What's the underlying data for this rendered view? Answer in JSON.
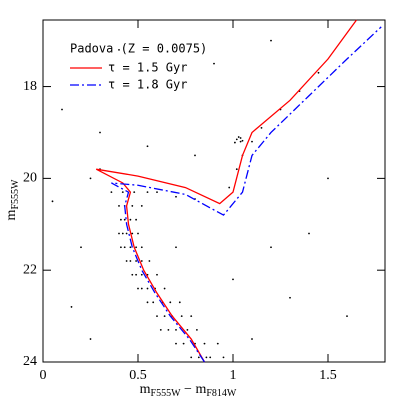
{
  "chart_data": {
    "type": "scatter",
    "legend_title": "Padova (Z = 0.0075)",
    "x_label": [
      "m",
      "F555W",
      " − m",
      "F814W"
    ],
    "y_label": [
      "m",
      "F555W"
    ],
    "xlim": [
      0,
      1.8
    ],
    "ylim": [
      24,
      16.55
    ],
    "xticks": [
      0,
      0.5,
      1,
      1.5
    ],
    "yticks": [
      18,
      20,
      22,
      24
    ],
    "legend": "upper left",
    "series": [
      {
        "type": "scatter",
        "color": "#000000",
        "x": [
          0.82,
          0.88,
          0.78,
          0.95,
          0.86,
          0.74,
          0.8,
          0.7,
          0.85,
          0.92,
          0.7,
          0.66,
          0.76,
          0.81,
          0.62,
          0.64,
          0.68,
          0.6,
          0.73,
          0.78,
          0.58,
          0.63,
          0.55,
          0.67,
          0.72,
          0.55,
          0.59,
          0.52,
          0.64,
          0.5,
          0.52,
          0.55,
          0.49,
          0.6,
          0.47,
          0.49,
          0.52,
          0.46,
          0.56,
          0.44,
          0.46,
          0.49,
          0.43,
          0.52,
          0.41,
          0.44,
          0.47,
          0.42,
          0.5,
          0.4,
          0.43,
          0.46,
          0.41,
          0.49,
          0.43,
          0.47,
          0.4,
          0.52,
          0.42,
          0.48,
          0.36,
          0.55,
          0.6,
          0.7,
          0.8,
          0.98,
          1.02,
          1.05,
          1.1,
          1.15,
          1.25,
          1.35,
          1.45,
          1.02,
          1.04,
          1.03,
          1.05,
          1.01,
          1.04,
          0.3,
          0.25,
          0.1,
          0.3,
          0.6,
          0.8,
          0.2,
          0.15,
          1.2,
          1.3,
          1.1,
          0.9,
          0.05,
          1.5,
          1.6,
          0.4,
          1.0,
          0.25,
          1.4,
          0.7,
          1.2,
          0.55
        ],
        "y": [
          23.9,
          23.9,
          23.9,
          23.9,
          23.9,
          23.6,
          23.6,
          23.6,
          23.6,
          23.6,
          23.3,
          23.3,
          23.3,
          23.3,
          23.3,
          23.0,
          23.0,
          23.0,
          23.0,
          23.0,
          22.7,
          22.7,
          22.7,
          22.7,
          22.7,
          22.4,
          22.4,
          22.4,
          22.4,
          22.4,
          22.1,
          22.1,
          22.1,
          22.1,
          22.1,
          21.8,
          21.8,
          21.8,
          21.8,
          21.8,
          21.5,
          21.5,
          21.5,
          21.5,
          21.5,
          21.2,
          21.2,
          21.2,
          21.2,
          21.2,
          20.9,
          20.9,
          20.9,
          20.9,
          20.6,
          20.6,
          20.6,
          20.6,
          20.3,
          20.3,
          20.3,
          20.3,
          20.3,
          20.4,
          20.45,
          20.2,
          19.8,
          19.5,
          19.2,
          18.9,
          18.5,
          18.1,
          17.7,
          19.15,
          19.2,
          19.1,
          19.18,
          19.22,
          19.12,
          19.8,
          20.0,
          18.5,
          19.0,
          18.0,
          19.5,
          21.5,
          22.8,
          21.5,
          22.6,
          23.5,
          17.5,
          20.5,
          20.0,
          23.0,
          17.2,
          22.2,
          23.5,
          21.2,
          21.5,
          17.0,
          19.3
        ]
      },
      {
        "type": "line",
        "name": "τ = 1.5 Gyr",
        "color": "#ff0000",
        "linestyle": "solid",
        "x": [
          0.85,
          0.78,
          0.68,
          0.6,
          0.53,
          0.48,
          0.45,
          0.44,
          0.46,
          0.42,
          0.28,
          0.5,
          0.75,
          0.93,
          1.0,
          1.05,
          1.1,
          1.3,
          1.5,
          1.65
        ],
        "y": [
          24,
          23.5,
          23,
          22.5,
          22,
          21.5,
          21,
          20.6,
          20.3,
          20.1,
          19.8,
          19.95,
          20.2,
          20.55,
          20.3,
          19.5,
          19.0,
          18.3,
          17.4,
          16.55
        ]
      },
      {
        "type": "line",
        "name": "τ = 1.8 Gyr",
        "color": "#0000ff",
        "linestyle": "dashdot",
        "x": [
          0.85,
          0.77,
          0.67,
          0.59,
          0.52,
          0.47,
          0.44,
          0.43,
          0.45,
          0.36,
          0.5,
          0.75,
          0.95,
          1.05,
          1.1,
          1.2,
          1.4,
          1.6,
          1.78
        ],
        "y": [
          24,
          23.5,
          23,
          22.5,
          22,
          21.5,
          21,
          20.6,
          20.3,
          20.1,
          20.15,
          20.35,
          20.8,
          20.3,
          19.5,
          19.0,
          18.2,
          17.4,
          16.7
        ]
      }
    ]
  }
}
